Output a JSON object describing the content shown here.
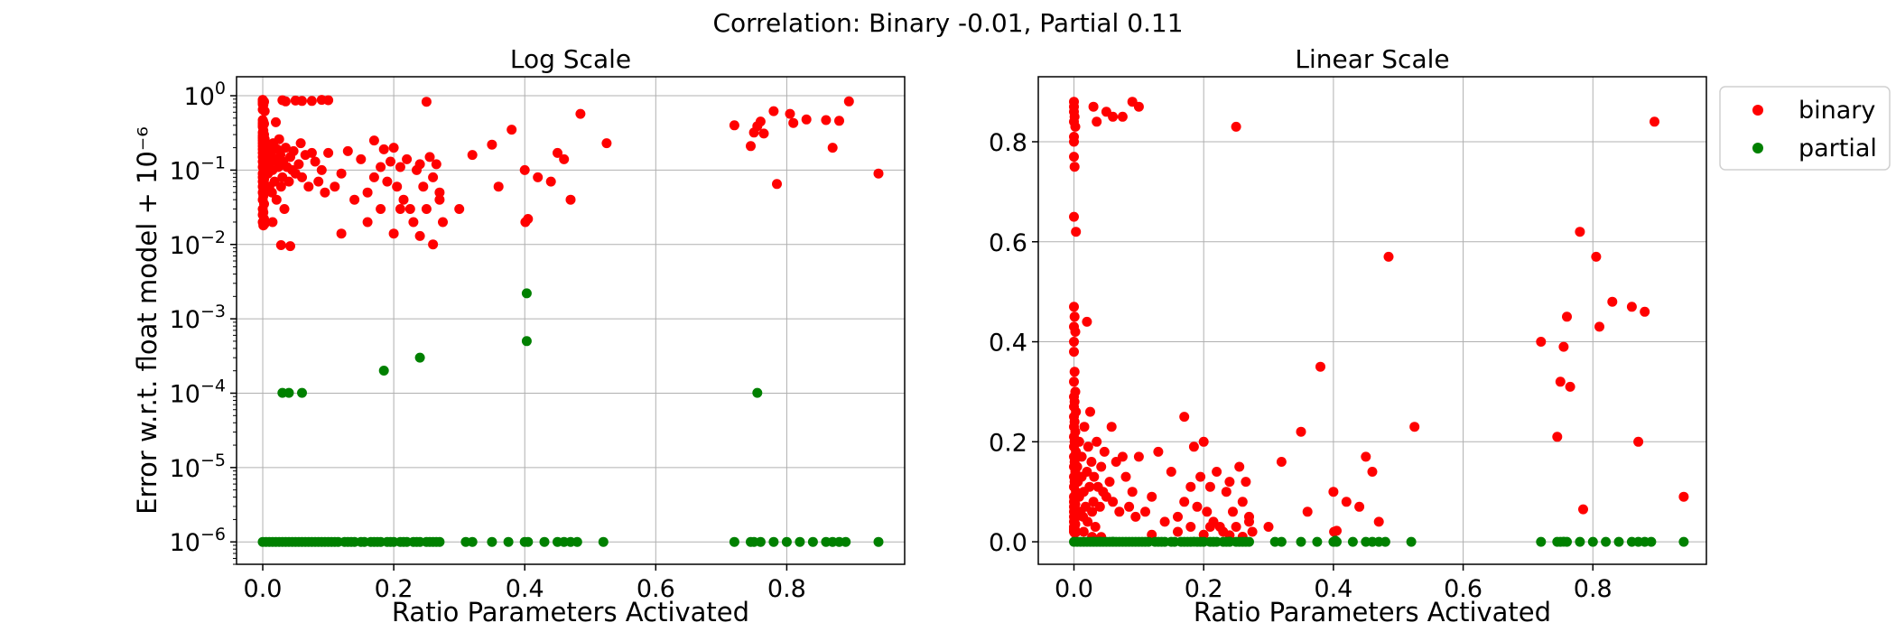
{
  "chart_data": {
    "suptitle": "Correlation: Binary -0.01, Partial 0.11",
    "legend": [
      {
        "label": "binary",
        "color": "#ff0000"
      },
      {
        "label": "partial",
        "color": "#008000"
      }
    ],
    "panels": [
      {
        "type": "scatter",
        "title": "Log Scale",
        "xlabel": "Ratio Parameters Activated",
        "ylabel": "Error w.r.t. float model + 10⁻⁶",
        "yscale": "log",
        "xlim": [
          -0.04,
          0.98
        ],
        "ylim": [
          5e-07,
          1.8
        ],
        "xticks": [
          "0.0",
          "0.2",
          "0.4",
          "0.6",
          "0.8"
        ],
        "yticks": [
          {
            "base": "10",
            "exp": "0",
            "value": 1
          },
          {
            "base": "10",
            "exp": "−1",
            "value": 0.1
          },
          {
            "base": "10",
            "exp": "−2",
            "value": 0.01
          },
          {
            "base": "10",
            "exp": "−3",
            "value": 0.001
          },
          {
            "base": "10",
            "exp": "−4",
            "value": 0.0001
          },
          {
            "base": "10",
            "exp": "−5",
            "value": 1e-05
          },
          {
            "base": "10",
            "exp": "−6",
            "value": 1e-06
          }
        ],
        "grid": true
      },
      {
        "type": "scatter",
        "title": "Linear Scale",
        "xlabel": "Ratio Parameters Activated",
        "ylabel": "",
        "yscale": "linear",
        "xlim": [
          -0.055,
          0.975
        ],
        "ylim": [
          -0.045,
          0.93
        ],
        "xticks": [
          "0.0",
          "0.2",
          "0.4",
          "0.6",
          "0.8"
        ],
        "yticks": [
          "0.0",
          "0.2",
          "0.4",
          "0.6",
          "0.8"
        ],
        "grid": true
      }
    ],
    "series": [
      {
        "name": "binary",
        "color": "#ff0000",
        "points": [
          [
            0.0,
            0.88
          ],
          [
            0.0,
            0.87
          ],
          [
            0.0,
            0.86
          ],
          [
            0.001,
            0.85
          ],
          [
            0.0,
            0.84
          ],
          [
            0.002,
            0.83
          ],
          [
            0.0,
            0.81
          ],
          [
            0.0,
            0.8
          ],
          [
            0.0,
            0.77
          ],
          [
            0.001,
            0.75
          ],
          [
            0.0,
            0.65
          ],
          [
            0.003,
            0.62
          ],
          [
            0.0,
            0.47
          ],
          [
            0.001,
            0.45
          ],
          [
            0.0,
            0.43
          ],
          [
            0.002,
            0.42
          ],
          [
            0.0,
            0.4
          ],
          [
            0.0,
            0.38
          ],
          [
            0.001,
            0.34
          ],
          [
            0.0,
            0.32
          ],
          [
            0.002,
            0.3
          ],
          [
            0.0,
            0.29
          ],
          [
            0.001,
            0.28
          ],
          [
            0.0,
            0.27
          ],
          [
            0.003,
            0.26
          ],
          [
            0.0,
            0.25
          ],
          [
            0.001,
            0.24
          ],
          [
            0.0,
            0.23
          ],
          [
            0.002,
            0.22
          ],
          [
            0.0,
            0.21
          ],
          [
            0.001,
            0.2
          ],
          [
            0.0,
            0.19
          ],
          [
            0.003,
            0.18
          ],
          [
            0.0,
            0.17
          ],
          [
            0.001,
            0.16
          ],
          [
            0.0,
            0.15
          ],
          [
            0.002,
            0.14
          ],
          [
            0.0,
            0.13
          ],
          [
            0.001,
            0.12
          ],
          [
            0.0,
            0.11
          ],
          [
            0.003,
            0.1
          ],
          [
            0.0,
            0.09
          ],
          [
            0.001,
            0.085
          ],
          [
            0.0,
            0.08
          ],
          [
            0.002,
            0.075
          ],
          [
            0.0,
            0.07
          ],
          [
            0.001,
            0.065
          ],
          [
            0.0,
            0.06
          ],
          [
            0.002,
            0.055
          ],
          [
            0.0,
            0.05
          ],
          [
            0.001,
            0.045
          ],
          [
            0.0,
            0.04
          ],
          [
            0.002,
            0.035
          ],
          [
            0.0,
            0.03
          ],
          [
            0.001,
            0.027
          ],
          [
            0.0,
            0.025
          ],
          [
            0.002,
            0.022
          ],
          [
            0.0,
            0.02
          ],
          [
            0.001,
            0.018
          ],
          [
            0.003,
            0.019
          ],
          [
            0.005,
            0.15
          ],
          [
            0.006,
            0.12
          ],
          [
            0.008,
            0.09
          ],
          [
            0.008,
            0.2
          ],
          [
            0.01,
            0.06
          ],
          [
            0.012,
            0.17
          ],
          [
            0.012,
            0.13
          ],
          [
            0.014,
            0.05
          ],
          [
            0.015,
            0.1
          ],
          [
            0.016,
            0.23
          ],
          [
            0.018,
            0.07
          ],
          [
            0.02,
            0.14
          ],
          [
            0.021,
            0.04
          ],
          [
            0.022,
            0.19
          ],
          [
            0.024,
            0.11
          ],
          [
            0.025,
            0.26
          ],
          [
            0.027,
            0.16
          ],
          [
            0.028,
            0.06
          ],
          [
            0.03,
            0.08
          ],
          [
            0.031,
            0.13
          ],
          [
            0.033,
            0.03
          ],
          [
            0.035,
            0.2
          ],
          [
            0.037,
            0.11
          ],
          [
            0.04,
            0.07
          ],
          [
            0.042,
            0.15
          ],
          [
            0.045,
            0.1
          ],
          [
            0.047,
            0.18
          ],
          [
            0.05,
            0.09
          ],
          [
            0.055,
            0.12
          ],
          [
            0.058,
            0.23
          ],
          [
            0.06,
            0.08
          ],
          [
            0.065,
            0.16
          ],
          [
            0.07,
            0.06
          ],
          [
            0.075,
            0.17
          ],
          [
            0.08,
            0.13
          ],
          [
            0.085,
            0.07
          ],
          [
            0.09,
            0.1
          ],
          [
            0.095,
            0.05
          ],
          [
            0.1,
            0.17
          ],
          [
            0.11,
            0.06
          ],
          [
            0.12,
            0.09
          ],
          [
            0.13,
            0.18
          ],
          [
            0.14,
            0.04
          ],
          [
            0.15,
            0.14
          ],
          [
            0.16,
            0.05
          ],
          [
            0.17,
            0.08
          ],
          [
            0.18,
            0.11
          ],
          [
            0.19,
            0.07
          ],
          [
            0.2,
            0.2
          ],
          [
            0.205,
            0.06
          ],
          [
            0.21,
            0.03
          ],
          [
            0.22,
            0.14
          ],
          [
            0.23,
            0.02
          ],
          [
            0.24,
            0.12
          ],
          [
            0.25,
            0.03
          ],
          [
            0.26,
            0.08
          ],
          [
            0.27,
            0.05
          ],
          [
            0.185,
            0.19
          ],
          [
            0.195,
            0.13
          ],
          [
            0.21,
            0.11
          ],
          [
            0.215,
            0.04
          ],
          [
            0.225,
            0.03
          ],
          [
            0.235,
            0.1
          ],
          [
            0.245,
            0.06
          ],
          [
            0.255,
            0.15
          ],
          [
            0.265,
            0.12
          ],
          [
            0.27,
            0.04
          ],
          [
            0.275,
            0.02
          ],
          [
            0.17,
            0.25
          ],
          [
            0.18,
            0.03
          ],
          [
            0.02,
            0.44
          ],
          [
            0.03,
            0.87
          ],
          [
            0.035,
            0.84
          ],
          [
            0.05,
            0.86
          ],
          [
            0.06,
            0.85
          ],
          [
            0.075,
            0.85
          ],
          [
            0.09,
            0.88
          ],
          [
            0.1,
            0.87
          ],
          [
            0.16,
            0.02
          ],
          [
            0.2,
            0.014
          ],
          [
            0.24,
            0.013
          ],
          [
            0.12,
            0.014
          ],
          [
            0.25,
            0.83
          ],
          [
            0.26,
            0.01
          ],
          [
            0.3,
            0.03
          ],
          [
            0.32,
            0.16
          ],
          [
            0.35,
            0.22
          ],
          [
            0.36,
            0.06
          ],
          [
            0.38,
            0.35
          ],
          [
            0.4,
            0.1
          ],
          [
            0.401,
            0.02
          ],
          [
            0.405,
            0.022
          ],
          [
            0.42,
            0.08
          ],
          [
            0.44,
            0.07
          ],
          [
            0.45,
            0.17
          ],
          [
            0.46,
            0.14
          ],
          [
            0.47,
            0.04
          ],
          [
            0.485,
            0.57
          ],
          [
            0.525,
            0.23
          ],
          [
            0.72,
            0.4
          ],
          [
            0.745,
            0.21
          ],
          [
            0.75,
            0.32
          ],
          [
            0.755,
            0.39
          ],
          [
            0.76,
            0.45
          ],
          [
            0.765,
            0.31
          ],
          [
            0.78,
            0.62
          ],
          [
            0.785,
            0.065
          ],
          [
            0.805,
            0.57
          ],
          [
            0.81,
            0.43
          ],
          [
            0.83,
            0.48
          ],
          [
            0.86,
            0.47
          ],
          [
            0.87,
            0.2
          ],
          [
            0.88,
            0.46
          ],
          [
            0.895,
            0.84
          ],
          [
            0.94,
            0.09
          ],
          [
            0.042,
            0.0095
          ],
          [
            0.028,
            0.0098
          ],
          [
            0.015,
            0.02
          ]
        ]
      },
      {
        "name": "partial",
        "color": "#008000",
        "points": [
          [
            0.0,
            0.0
          ],
          [
            0.005,
            0.0
          ],
          [
            0.01,
            0.0
          ],
          [
            0.015,
            0.0
          ],
          [
            0.02,
            0.0
          ],
          [
            0.025,
            0.0
          ],
          [
            0.03,
            0.0
          ],
          [
            0.035,
            0.0
          ],
          [
            0.04,
            0.0
          ],
          [
            0.045,
            0.0
          ],
          [
            0.05,
            0.0
          ],
          [
            0.055,
            0.0
          ],
          [
            0.06,
            0.0
          ],
          [
            0.065,
            0.0
          ],
          [
            0.07,
            0.0
          ],
          [
            0.075,
            0.0
          ],
          [
            0.08,
            0.0
          ],
          [
            0.085,
            0.0
          ],
          [
            0.09,
            0.0
          ],
          [
            0.095,
            0.0
          ],
          [
            0.1,
            0.0
          ],
          [
            0.105,
            0.0
          ],
          [
            0.11,
            0.0
          ],
          [
            0.115,
            0.0
          ],
          [
            0.125,
            0.0
          ],
          [
            0.13,
            0.0
          ],
          [
            0.135,
            0.0
          ],
          [
            0.14,
            0.0
          ],
          [
            0.15,
            0.0
          ],
          [
            0.155,
            0.0
          ],
          [
            0.165,
            0.0
          ],
          [
            0.17,
            0.0
          ],
          [
            0.175,
            0.0
          ],
          [
            0.18,
            0.0
          ],
          [
            0.19,
            0.0
          ],
          [
            0.195,
            0.0
          ],
          [
            0.2,
            0.0
          ],
          [
            0.21,
            0.0
          ],
          [
            0.215,
            0.0
          ],
          [
            0.22,
            0.0
          ],
          [
            0.23,
            0.0
          ],
          [
            0.235,
            0.0
          ],
          [
            0.24,
            0.0
          ],
          [
            0.25,
            0.0
          ],
          [
            0.255,
            0.0
          ],
          [
            0.26,
            0.0
          ],
          [
            0.265,
            0.0
          ],
          [
            0.27,
            0.0
          ],
          [
            0.31,
            0.0
          ],
          [
            0.32,
            0.0
          ],
          [
            0.35,
            0.0
          ],
          [
            0.375,
            0.0
          ],
          [
            0.4,
            0.0
          ],
          [
            0.405,
            0.0
          ],
          [
            0.43,
            0.0
          ],
          [
            0.45,
            0.0
          ],
          [
            0.46,
            0.0
          ],
          [
            0.47,
            0.0
          ],
          [
            0.48,
            0.0
          ],
          [
            0.52,
            0.0
          ],
          [
            0.72,
            0.0
          ],
          [
            0.745,
            0.0
          ],
          [
            0.75,
            0.0
          ],
          [
            0.76,
            0.0
          ],
          [
            0.78,
            0.0
          ],
          [
            0.8,
            0.0
          ],
          [
            0.82,
            0.0
          ],
          [
            0.84,
            0.0
          ],
          [
            0.86,
            0.0
          ],
          [
            0.87,
            0.0
          ],
          [
            0.88,
            0.0
          ],
          [
            0.89,
            0.0
          ],
          [
            0.94,
            0.0
          ],
          [
            0.03,
            0.0001
          ],
          [
            0.04,
            0.0001
          ],
          [
            0.06,
            0.0001
          ],
          [
            0.185,
            0.0002
          ],
          [
            0.24,
            0.0003
          ],
          [
            0.403,
            0.0022
          ],
          [
            0.403,
            0.0005
          ],
          [
            0.755,
            0.0001
          ]
        ]
      }
    ]
  }
}
